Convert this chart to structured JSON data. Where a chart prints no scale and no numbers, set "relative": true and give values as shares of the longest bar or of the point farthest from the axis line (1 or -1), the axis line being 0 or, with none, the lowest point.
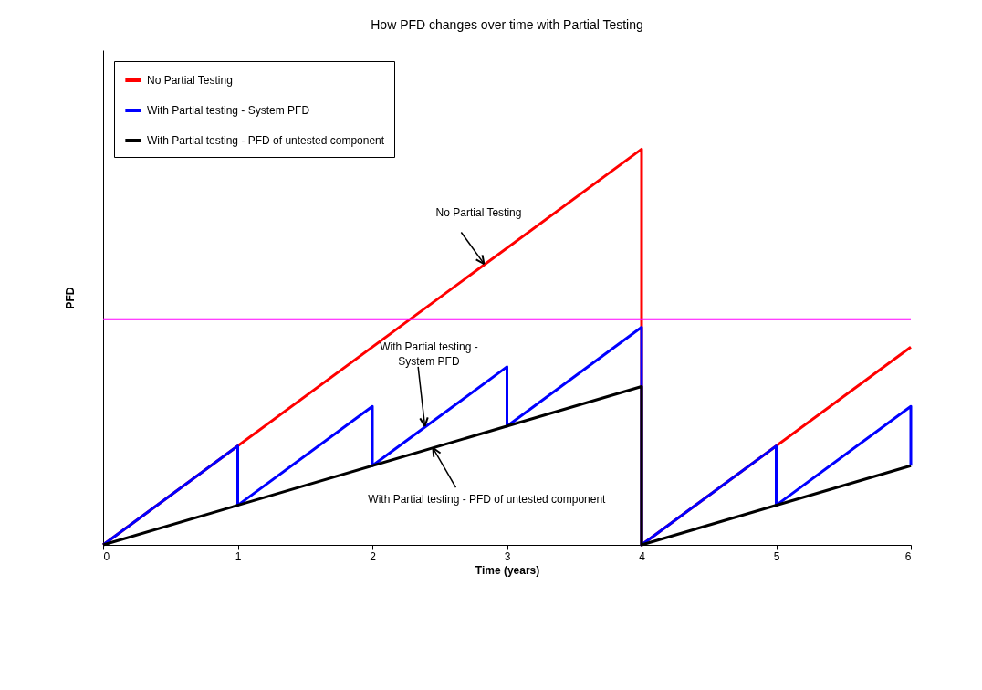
{
  "chart_data": {
    "type": "line",
    "title": "How PFD changes over time with Partial Testing",
    "xlabel": "Time (years)",
    "ylabel": "PFD",
    "relative": true,
    "xlim": [
      0,
      6
    ],
    "xticks": [
      0,
      1,
      2,
      3,
      4,
      5,
      6
    ],
    "series": [
      {
        "name": "No Partial Testing",
        "color": "#ff0000",
        "x": [
          0,
          4,
          4,
          6
        ],
        "values": [
          0,
          1,
          0,
          0.5
        ]
      },
      {
        "name": "With Partial testing - System PFD",
        "color": "#0000ff",
        "x": [
          0,
          1,
          1,
          2,
          2,
          3,
          3,
          4,
          4,
          5,
          5,
          6,
          6
        ],
        "values": [
          0,
          0.25,
          0.1,
          0.35,
          0.2,
          0.45,
          0.3,
          0.55,
          0,
          0.25,
          0.1,
          0.35,
          0.2
        ]
      },
      {
        "name": "With Partial testing - PFD of untested component",
        "color": "#000000",
        "x": [
          0,
          4,
          4,
          6
        ],
        "values": [
          0,
          0.4,
          0,
          0.2
        ]
      }
    ],
    "ref_lines": [
      {
        "axis": "y",
        "value": 0.57,
        "color": "#ff00ff"
      }
    ],
    "annotations": [
      {
        "text": "No Partial Testing",
        "x": 2.83,
        "y": 0.71
      },
      {
        "text": "With Partial testing -\nSystem PFD",
        "x": 2.39,
        "y": 0.3
      },
      {
        "text": "With Partial testing - PFD of untested component",
        "x": 2.45,
        "y": 0.245
      }
    ],
    "legend": "top left",
    "grid": false,
    "marker": "none",
    "line_style": "solid"
  }
}
